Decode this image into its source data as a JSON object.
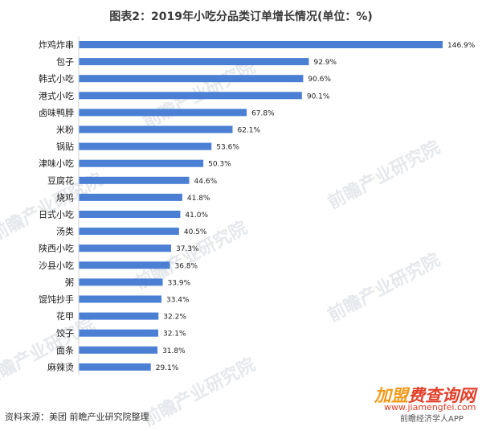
{
  "title": "图表2：2019年小吃分品类订单增长情况(单位：%)",
  "source": "资料来源：美团 前瞻产业研究院整理",
  "watermark": {
    "brand_text": "前瞻产业研究院",
    "corner_logo_a": "加盟",
    "corner_logo_b": "费查询网",
    "corner_url": "www.jiamengfei.com",
    "corner_app": "前瞻经济学人APP"
  },
  "colors": {
    "bar": "#4a7fd4",
    "title": "#3a3a3a"
  },
  "chart_data": {
    "type": "bar",
    "orientation": "horizontal",
    "title": "图表2：2019年小吃分品类订单增长情况(单位：%)",
    "categories": [
      "炸鸡炸串",
      "包子",
      "韩式小吃",
      "港式小吃",
      "卤味鸭脖",
      "米粉",
      "锅贴",
      "津味小吃",
      "豆腐花",
      "烧鸡",
      "日式小吃",
      "汤类",
      "陕西小吃",
      "沙县小吃",
      "粥",
      "馄饨抄手",
      "花甲",
      "饺子",
      "面条",
      "麻辣烫"
    ],
    "values": [
      146.9,
      92.9,
      90.6,
      90.1,
      67.8,
      62.1,
      53.6,
      50.3,
      44.6,
      41.8,
      41.0,
      40.5,
      37.3,
      36.8,
      33.9,
      33.4,
      32.2,
      32.1,
      31.8,
      29.1
    ],
    "value_labels": [
      "146.9%",
      "92.9%",
      "90.6%",
      "90.1%",
      "67.8%",
      "62.1%",
      "53.6%",
      "50.3%",
      "44.6%",
      "41.8%",
      "41.0%",
      "40.5%",
      "37.3%",
      "36.8%",
      "33.9%",
      "33.4%",
      "32.2%",
      "32.1%",
      "31.8%",
      "29.1%"
    ],
    "xlim": [
      0,
      146.9
    ],
    "grid": false,
    "legend": "none"
  }
}
